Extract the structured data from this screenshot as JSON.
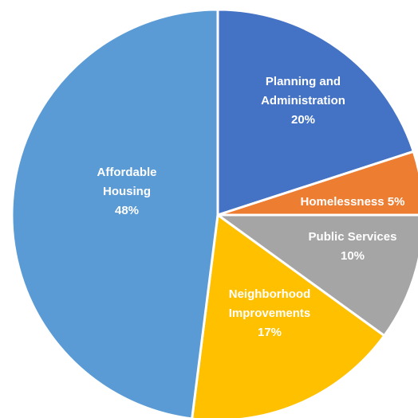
{
  "chart_data": {
    "type": "pie",
    "title": "",
    "slices": [
      {
        "name": "Planning and Administration",
        "label_lines": [
          "Planning and",
          "Administration"
        ],
        "value": 20,
        "value_label": "20%",
        "color": "#4472C4"
      },
      {
        "name": "Homelessness",
        "label_lines": [
          "Homelessness 5%"
        ],
        "value": 5,
        "value_label": "5%",
        "color": "#ED7D31"
      },
      {
        "name": "Public Services",
        "label_lines": [
          "Public Services"
        ],
        "value": 10,
        "value_label": "10%",
        "color": "#A5A5A5"
      },
      {
        "name": "Neighborhood Improvements",
        "label_lines": [
          "Neighborhood",
          "Improvements"
        ],
        "value": 17,
        "value_label": "17%",
        "color": "#FFC000"
      },
      {
        "name": "Affordable Housing",
        "label_lines": [
          "Affordable",
          "Housing"
        ],
        "value": 48,
        "value_label": "48%",
        "color": "#5B9BD5"
      }
    ],
    "start_angle_deg": 0,
    "direction": "clockwise",
    "legend": "none",
    "slice_border_color": "#ffffff"
  }
}
